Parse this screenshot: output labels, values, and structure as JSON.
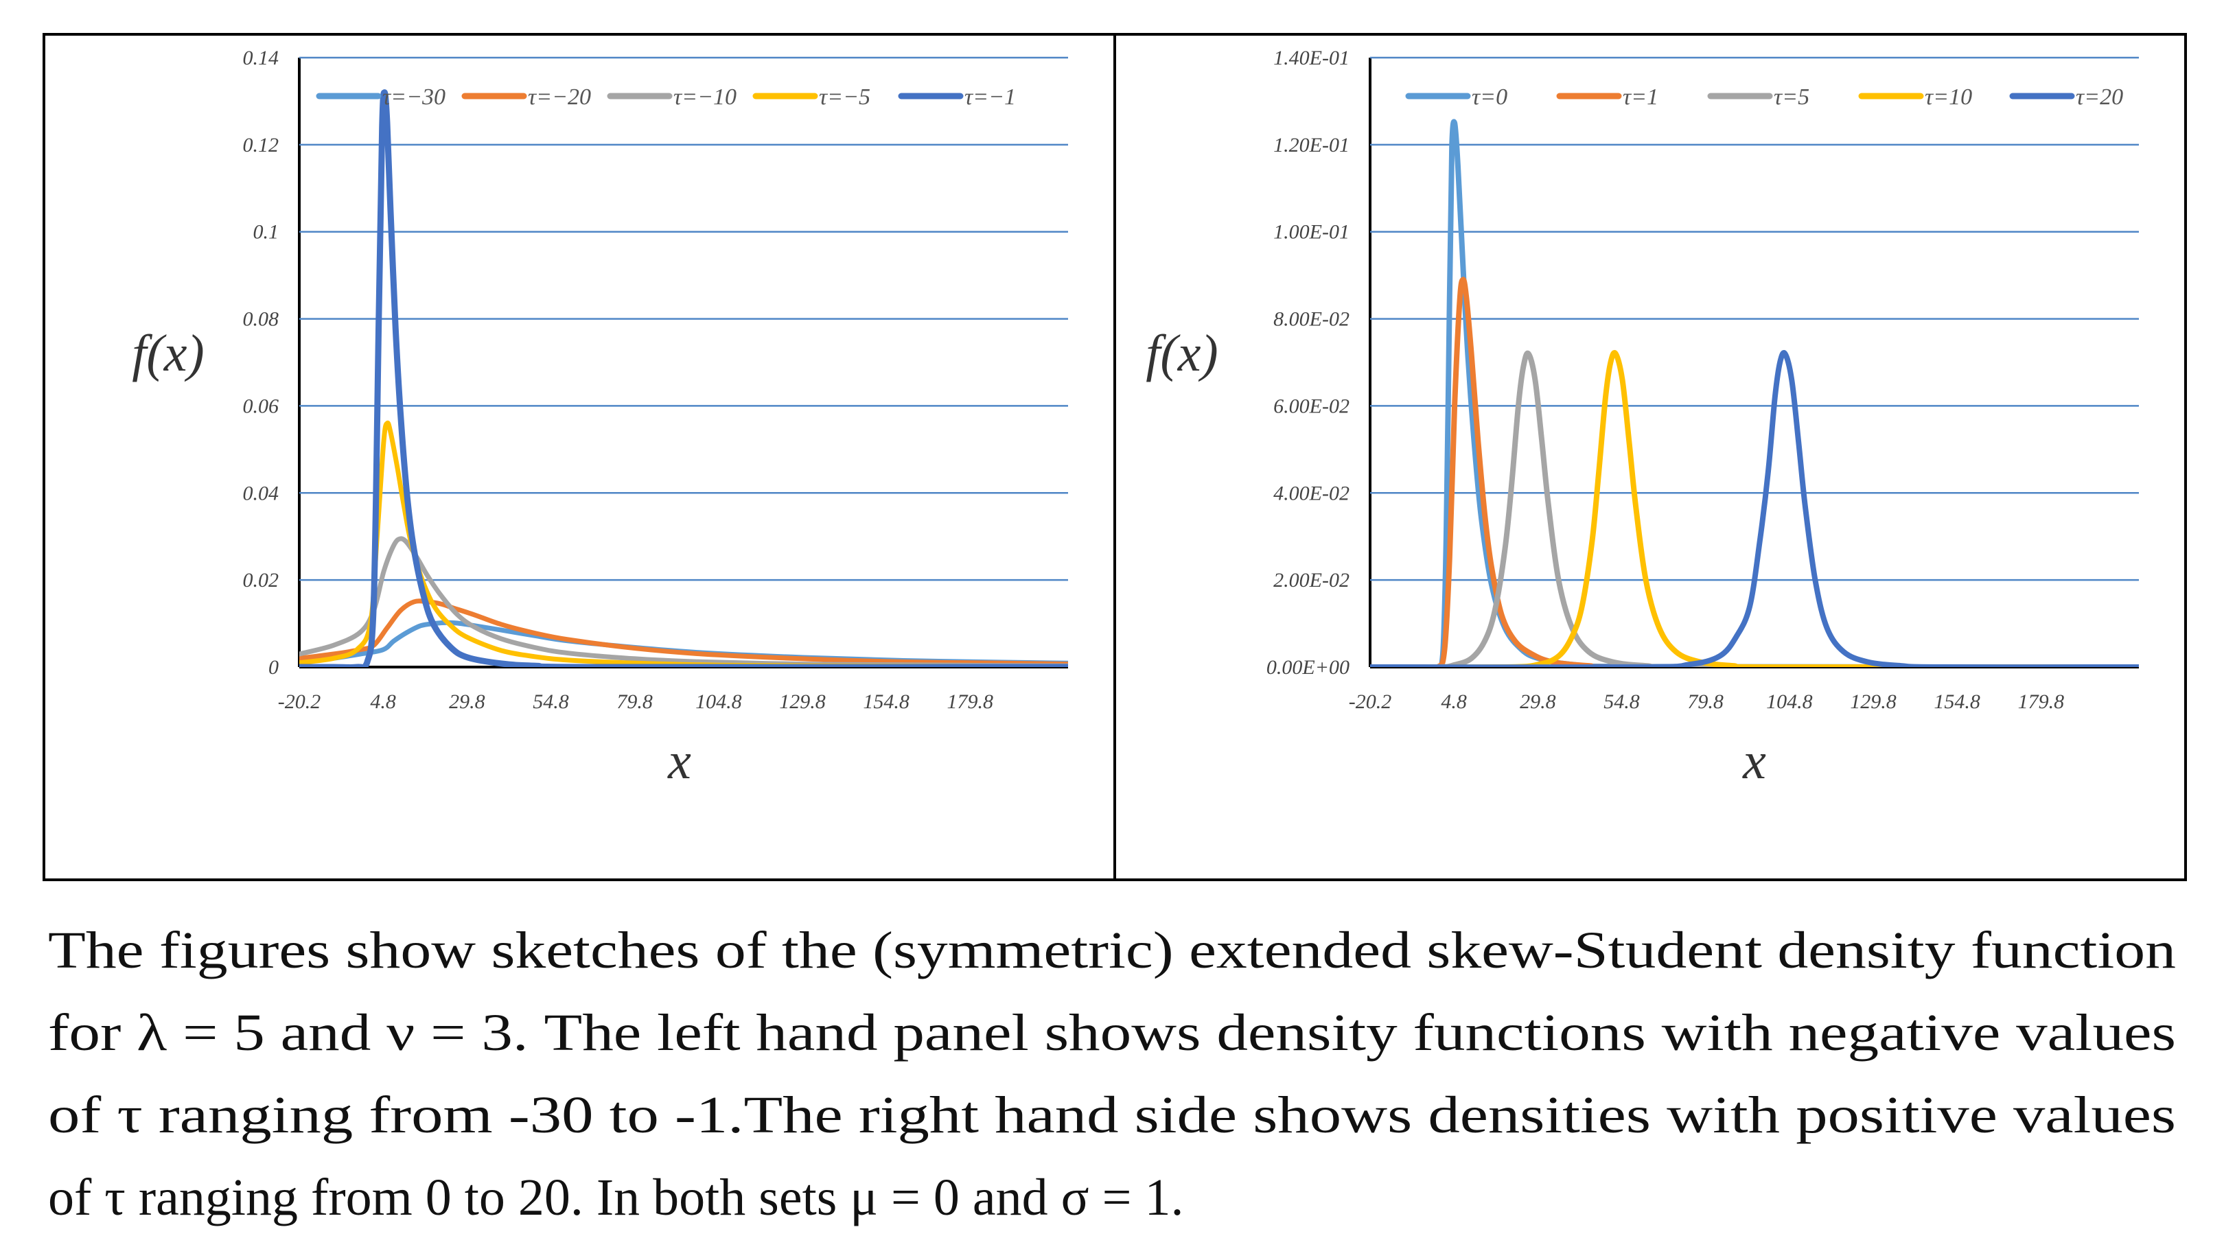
{
  "chart_data": [
    {
      "type": "line",
      "panel": "left",
      "xlabel": "x",
      "ylabel": "f(x)",
      "xlim": [
        -20.2,
        209
      ],
      "ylim": [
        0,
        0.14
      ],
      "xticks": [
        "-20.2",
        "4.8",
        "29.8",
        "54.8",
        "79.8",
        "104.8",
        "129.8",
        "154.8",
        "179.8"
      ],
      "yticks": [
        "0",
        "0.02",
        "0.04",
        "0.06",
        "0.08",
        "0.1",
        "0.12",
        "0.14"
      ],
      "grid": true,
      "legend_position": "top",
      "series": [
        {
          "name": "τ=−30",
          "color": "#5b9bd5",
          "width": 7,
          "x": [
            -20.2,
            -10,
            -2,
            4.8,
            8,
            12,
            16,
            20,
            24,
            28,
            32,
            40,
            50,
            60,
            80,
            100,
            130,
            160,
            190,
            209
          ],
          "y": [
            0.001,
            0.002,
            0.003,
            0.004,
            0.006,
            0.008,
            0.0095,
            0.01,
            0.0102,
            0.01,
            0.0095,
            0.0085,
            0.0072,
            0.006,
            0.0045,
            0.0033,
            0.0022,
            0.0015,
            0.0011,
            0.0009
          ]
        },
        {
          "name": "τ=−20",
          "color": "#ed7d31",
          "width": 7,
          "x": [
            -20.2,
            -10,
            -2,
            2,
            6,
            10,
            14,
            18,
            22,
            26,
            32,
            40,
            50,
            60,
            80,
            100,
            130,
            160,
            190,
            209
          ],
          "y": [
            0.002,
            0.003,
            0.004,
            0.005,
            0.009,
            0.013,
            0.015,
            0.015,
            0.0145,
            0.0135,
            0.012,
            0.0098,
            0.0078,
            0.0063,
            0.0043,
            0.003,
            0.0019,
            0.0012,
            0.0009,
            0.0007
          ]
        },
        {
          "name": "τ=−10",
          "color": "#a5a5a5",
          "width": 7,
          "x": [
            -20.2,
            -10,
            -2,
            2,
            5,
            8,
            10,
            12,
            15,
            18,
            22,
            27,
            32,
            40,
            50,
            60,
            80,
            100,
            130,
            160,
            209
          ],
          "y": [
            0.003,
            0.005,
            0.008,
            0.013,
            0.022,
            0.028,
            0.0295,
            0.0285,
            0.025,
            0.021,
            0.0165,
            0.012,
            0.0092,
            0.0065,
            0.0045,
            0.0032,
            0.0019,
            0.0012,
            0.0007,
            0.0005,
            0.0003
          ]
        },
        {
          "name": "τ=−5",
          "color": "#ffc000",
          "width": 7,
          "x": [
            -20.2,
            -10,
            -3,
            1,
            3,
            5,
            6,
            7,
            9,
            11,
            13,
            16,
            20,
            25,
            30,
            40,
            50,
            60,
            80,
            100,
            130,
            209
          ],
          "y": [
            0.001,
            0.002,
            0.004,
            0.01,
            0.03,
            0.052,
            0.056,
            0.054,
            0.046,
            0.037,
            0.029,
            0.021,
            0.014,
            0.0095,
            0.0068,
            0.0038,
            0.0024,
            0.0016,
            0.0009,
            0.0005,
            0.0003,
            0.0001
          ]
        },
        {
          "name": "τ=−1",
          "color": "#4472c4",
          "width": 9,
          "x": [
            -20.2,
            -10,
            -3,
            0,
            2,
            3.5,
            4.5,
            5.2,
            6,
            7,
            8.5,
            10,
            12,
            14,
            17,
            20,
            25,
            30,
            40,
            50,
            70,
            209
          ],
          "y": [
            0,
            0,
            0,
            0.001,
            0.015,
            0.08,
            0.124,
            0.132,
            0.125,
            0.105,
            0.078,
            0.058,
            0.039,
            0.027,
            0.016,
            0.0095,
            0.0045,
            0.0022,
            0.0008,
            0.0003,
            0,
            0
          ]
        }
      ]
    },
    {
      "type": "line",
      "panel": "right",
      "xlabel": "x",
      "ylabel": "f(x)",
      "xlim": [
        -20.2,
        209
      ],
      "ylim": [
        0,
        0.14
      ],
      "xticks": [
        "-20.2",
        "4.8",
        "29.8",
        "54.8",
        "79.8",
        "104.8",
        "129.8",
        "154.8",
        "179.8"
      ],
      "yticks": [
        "0.00E+00",
        "2.00E-02",
        "4.00E-02",
        "6.00E-02",
        "8.00E-02",
        "1.00E-01",
        "1.20E-01",
        "1.40E-01"
      ],
      "grid": true,
      "legend_position": "top",
      "series": [
        {
          "name": "τ=0",
          "color": "#5b9bd5",
          "width": 8,
          "x": [
            -20.2,
            -5,
            0,
            1.5,
            2.5,
            3.5,
            4.2,
            5,
            6,
            7.5,
            9,
            11,
            13,
            16,
            20,
            25,
            30,
            40,
            60,
            209
          ],
          "y": [
            0,
            0,
            0,
            0.003,
            0.03,
            0.085,
            0.12,
            0.125,
            0.115,
            0.092,
            0.071,
            0.05,
            0.034,
            0.019,
            0.009,
            0.004,
            0.002,
            0.0006,
            0.0001,
            0
          ]
        },
        {
          "name": "τ=1",
          "color": "#ed7d31",
          "width": 8,
          "x": [
            -20.2,
            -5,
            0,
            2,
            3.5,
            5,
            6.5,
            7.5,
            8.5,
            10,
            12,
            14,
            16,
            19,
            23,
            28,
            34,
            45,
            60,
            209
          ],
          "y": [
            0,
            0,
            0,
            0.004,
            0.025,
            0.06,
            0.084,
            0.089,
            0.085,
            0.072,
            0.052,
            0.035,
            0.023,
            0.012,
            0.006,
            0.003,
            0.0012,
            0.0003,
            0,
            0
          ]
        },
        {
          "name": "τ=5",
          "color": "#a5a5a5",
          "width": 8,
          "x": [
            -20.2,
            0,
            5,
            10,
            14,
            17,
            20,
            22,
            24,
            25.5,
            27,
            29,
            31,
            33,
            36,
            40,
            45,
            52,
            62,
            80,
            209
          ],
          "y": [
            0,
            0,
            0.0005,
            0.002,
            0.006,
            0.013,
            0.027,
            0.042,
            0.06,
            0.069,
            0.072,
            0.066,
            0.052,
            0.037,
            0.02,
            0.009,
            0.0035,
            0.0012,
            0.0003,
            0,
            0
          ]
        },
        {
          "name": "τ=10",
          "color": "#ffc000",
          "width": 8,
          "x": [
            -20.2,
            20,
            30,
            36,
            40,
            43,
            46,
            48,
            50,
            51.5,
            53,
            55,
            57,
            59,
            62,
            66,
            71,
            78,
            88,
            100,
            209
          ],
          "y": [
            0,
            0,
            0.0006,
            0.0025,
            0.007,
            0.014,
            0.029,
            0.045,
            0.062,
            0.07,
            0.072,
            0.066,
            0.052,
            0.037,
            0.02,
            0.009,
            0.0035,
            0.0012,
            0.0003,
            0,
            0
          ]
        },
        {
          "name": "τ=20",
          "color": "#4472c4",
          "width": 8,
          "x": [
            -20.2,
            60,
            75,
            84,
            89,
            93,
            96,
            98.5,
            100.5,
            102,
            103.5,
            105.5,
            107.5,
            109.5,
            112.5,
            116,
            121,
            128,
            138,
            150,
            209
          ],
          "y": [
            0,
            0,
            0.0006,
            0.0025,
            0.007,
            0.014,
            0.029,
            0.045,
            0.062,
            0.07,
            0.072,
            0.066,
            0.052,
            0.037,
            0.02,
            0.009,
            0.0035,
            0.0012,
            0.0003,
            0,
            0
          ]
        }
      ]
    }
  ],
  "caption": [
    "The figures show sketches of the (symmetric) extended skew-Student density function",
    "for λ = 5 and ν = 3. The left hand panel shows density functions with negative values",
    "of τ  ranging from -30 to -1.The right hand side shows densities with positive values",
    "of τ ranging from 0 to 20. In both sets μ = 0 and σ = 1."
  ]
}
